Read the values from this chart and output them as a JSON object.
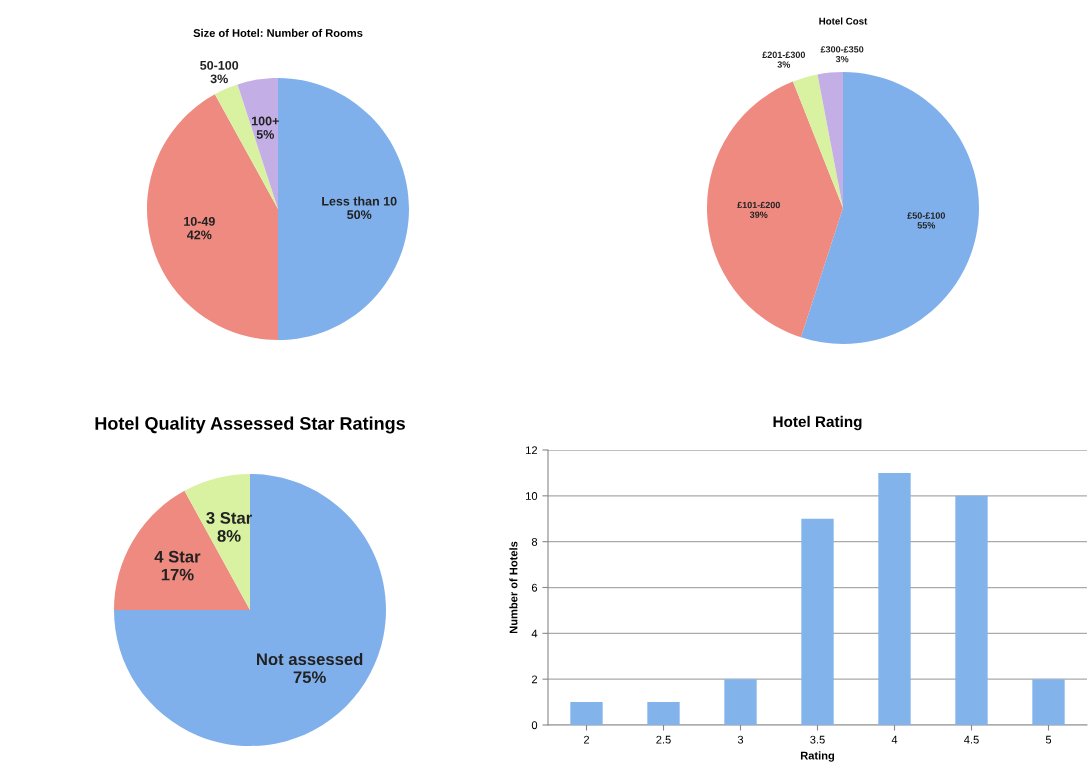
{
  "chart_data": [
    {
      "type": "pie",
      "title": "Size of Hotel: Number of Rooms",
      "categories": [
        "Less than 10",
        "10-49",
        "50-100",
        "100+"
      ],
      "values": [
        50,
        42,
        3,
        5
      ],
      "value_labels": [
        "50%",
        "42%",
        "3%",
        "5%"
      ],
      "colors": [
        "#7fb0ec",
        "#ee8a80",
        "#d8f2a2",
        "#c4aee6"
      ]
    },
    {
      "type": "pie",
      "title": "Hotel Cost",
      "categories": [
        "£50-£100",
        "£101-£200",
        "£201-£300",
        "£300-£350"
      ],
      "values": [
        55,
        39,
        3,
        3
      ],
      "value_labels": [
        "55%",
        "39%",
        "3%",
        "3%"
      ],
      "colors": [
        "#7fb0ec",
        "#ee8a80",
        "#d8f2a2",
        "#c4aee6"
      ]
    },
    {
      "type": "pie",
      "title": "Hotel Quality Assessed Star Ratings",
      "categories": [
        "Not assessed",
        "4 Star",
        "3 Star"
      ],
      "values": [
        75,
        17,
        8
      ],
      "value_labels": [
        "75%",
        "17%",
        "8%"
      ],
      "colors": [
        "#7fb0ec",
        "#ee8a80",
        "#d8f2a2"
      ]
    },
    {
      "type": "bar",
      "title": "Hotel Rating",
      "xlabel": "Rating",
      "ylabel": "Number of Hotels",
      "categories": [
        "2",
        "2.5",
        "3",
        "3.5",
        "4",
        "4.5",
        "5"
      ],
      "values": [
        1,
        1,
        2,
        9,
        11,
        10,
        2
      ],
      "color": "#82b3ea",
      "ylim": [
        0,
        12
      ],
      "yticks": [
        0,
        2,
        4,
        6,
        8,
        10,
        12
      ],
      "grid": "y"
    }
  ]
}
